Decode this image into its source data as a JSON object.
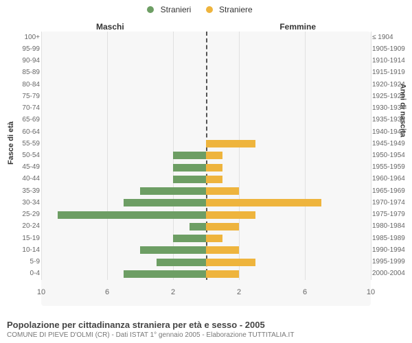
{
  "legend": {
    "male": {
      "label": "Stranieri",
      "color": "#6d9e64"
    },
    "female": {
      "label": "Straniere",
      "color": "#eeb43d"
    }
  },
  "header": {
    "left": "Maschi",
    "right": "Femmine"
  },
  "axis": {
    "left_title": "Fasce di età",
    "right_title": "Anni di nascita",
    "xmax": 10,
    "xticks": [
      10,
      6,
      2,
      2,
      6,
      10
    ],
    "xtick_positions_pct": [
      0,
      20,
      40,
      60,
      80,
      100
    ]
  },
  "style": {
    "plot_bg": "#f7f7f7",
    "grid_color": "#e0e0e0",
    "center_color": "#555555",
    "font": "Arial"
  },
  "rows": [
    {
      "age": "100+",
      "birth": "≤ 1904",
      "m": 0,
      "f": 0
    },
    {
      "age": "95-99",
      "birth": "1905-1909",
      "m": 0,
      "f": 0
    },
    {
      "age": "90-94",
      "birth": "1910-1914",
      "m": 0,
      "f": 0
    },
    {
      "age": "85-89",
      "birth": "1915-1919",
      "m": 0,
      "f": 0
    },
    {
      "age": "80-84",
      "birth": "1920-1924",
      "m": 0,
      "f": 0
    },
    {
      "age": "75-79",
      "birth": "1925-1929",
      "m": 0,
      "f": 0
    },
    {
      "age": "70-74",
      "birth": "1930-1934",
      "m": 0,
      "f": 0
    },
    {
      "age": "65-69",
      "birth": "1935-1939",
      "m": 0,
      "f": 0
    },
    {
      "age": "60-64",
      "birth": "1940-1944",
      "m": 0,
      "f": 0
    },
    {
      "age": "55-59",
      "birth": "1945-1949",
      "m": 0,
      "f": 3
    },
    {
      "age": "50-54",
      "birth": "1950-1954",
      "m": 2,
      "f": 1
    },
    {
      "age": "45-49",
      "birth": "1955-1959",
      "m": 2,
      "f": 1
    },
    {
      "age": "40-44",
      "birth": "1960-1964",
      "m": 2,
      "f": 1
    },
    {
      "age": "35-39",
      "birth": "1965-1969",
      "m": 4,
      "f": 2
    },
    {
      "age": "30-34",
      "birth": "1970-1974",
      "m": 5,
      "f": 7
    },
    {
      "age": "25-29",
      "birth": "1975-1979",
      "m": 9,
      "f": 3
    },
    {
      "age": "20-24",
      "birth": "1980-1984",
      "m": 1,
      "f": 2
    },
    {
      "age": "15-19",
      "birth": "1985-1989",
      "m": 2,
      "f": 1
    },
    {
      "age": "10-14",
      "birth": "1990-1994",
      "m": 4,
      "f": 2
    },
    {
      "age": "5-9",
      "birth": "1995-1999",
      "m": 3,
      "f": 3
    },
    {
      "age": "0-4",
      "birth": "2000-2004",
      "m": 5,
      "f": 2
    }
  ],
  "footer": {
    "title": "Popolazione per cittadinanza straniera per età e sesso - 2005",
    "subtitle": "COMUNE DI PIEVE D'OLMI (CR) - Dati ISTAT 1° gennaio 2005 - Elaborazione TUTTITALIA.IT"
  }
}
